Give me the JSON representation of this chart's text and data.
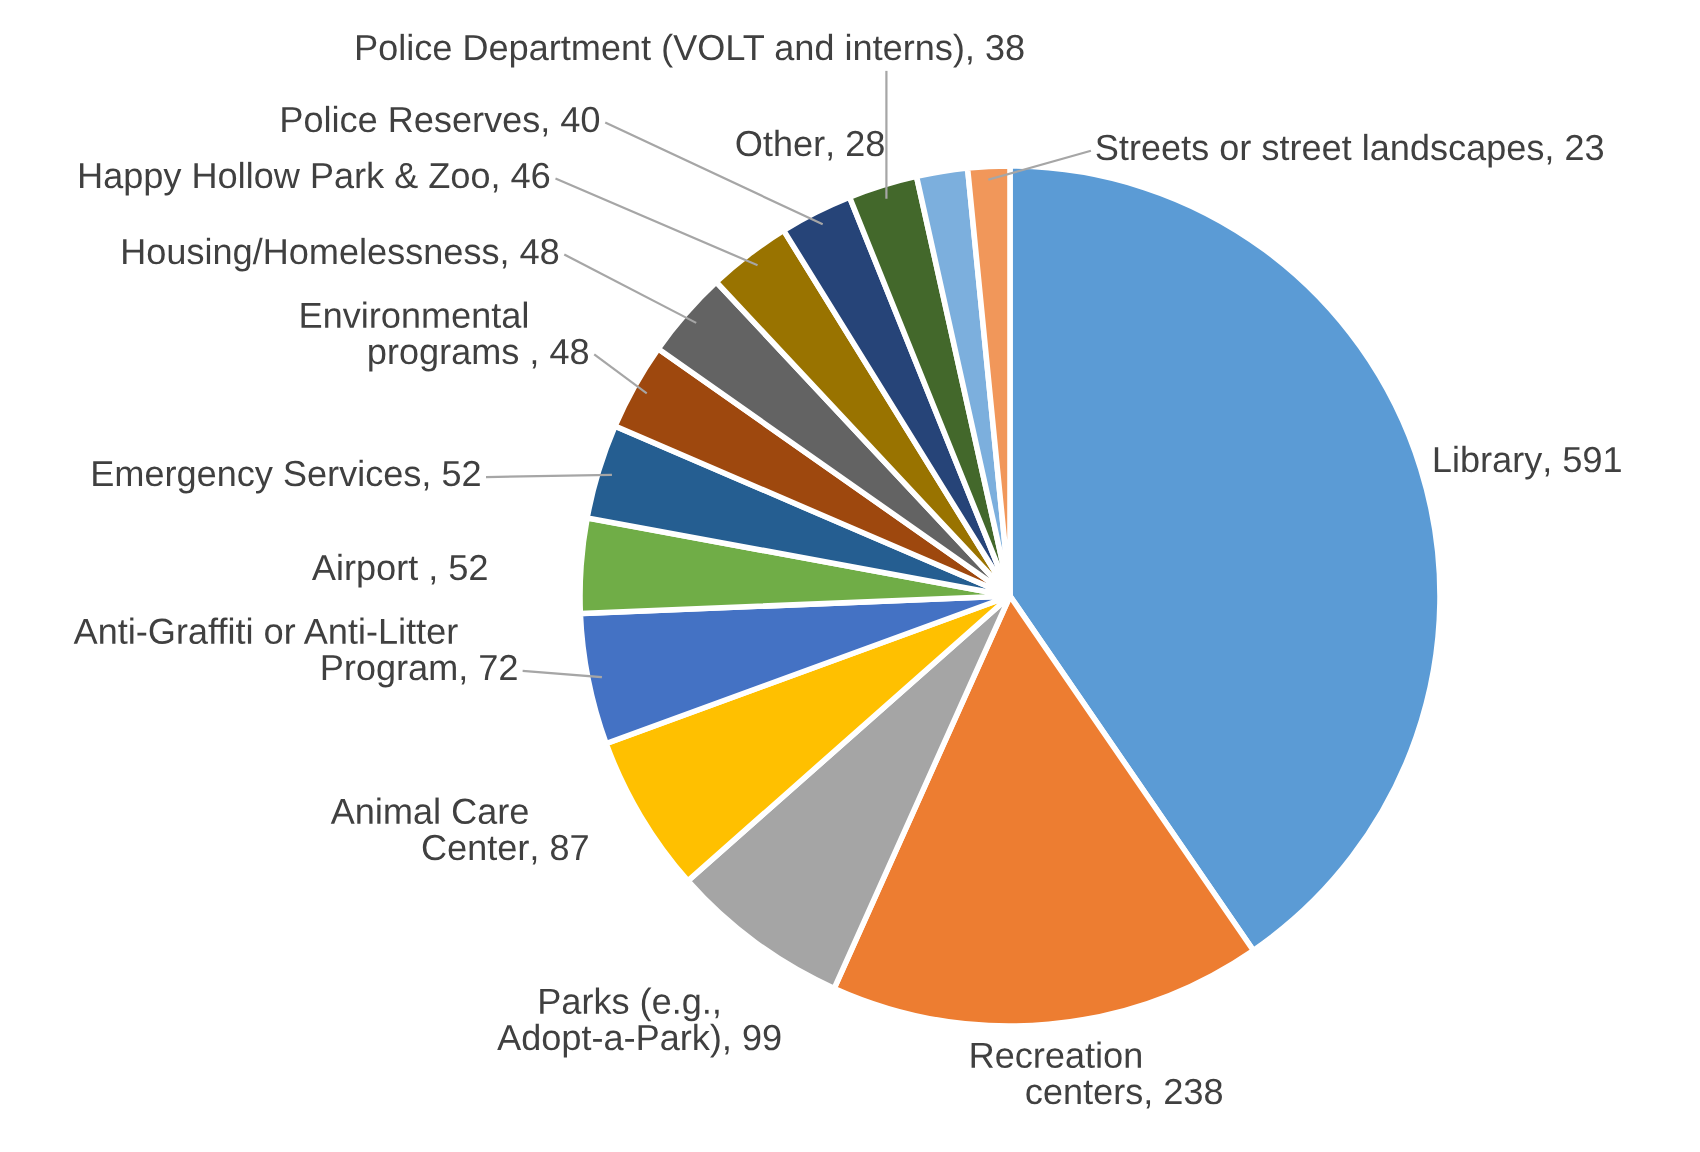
{
  "chart_data": {
    "type": "pie",
    "categories": [
      "Library",
      "Recreation\ncenters",
      "Parks (e.g.,\nAdopt-a-Park)",
      "Animal Care\nCenter",
      "Anti-Graffiti or Anti-Litter\nProgram",
      "Airport ",
      "Emergency Services",
      "Environmental\nprograms ",
      "Housing/Homelessness",
      "Happy Hollow Park & Zoo",
      "Police Reserves",
      "Police Department (VOLT and interns)",
      "Other",
      "Streets or street landscapes"
    ],
    "values": [
      591,
      238,
      99,
      87,
      72,
      52,
      52,
      48,
      48,
      46,
      40,
      38,
      28,
      23
    ],
    "colors": [
      "#5b9bd5",
      "#ed7d31",
      "#a5a5a5",
      "#ffc000",
      "#4472c4",
      "#70ad47",
      "#255e91",
      "#9e480e",
      "#636363",
      "#997300",
      "#264478",
      "#43682b",
      "#7cafdd",
      "#f1975a"
    ],
    "value_labels": [
      ", 591",
      ", 238",
      ", 99",
      ", 87",
      ", 72",
      ", 52",
      ", 52",
      ", 48",
      ", 48",
      ", 46",
      ", 40",
      ", 38",
      ", 28",
      ", 23"
    ],
    "legend": false
  }
}
